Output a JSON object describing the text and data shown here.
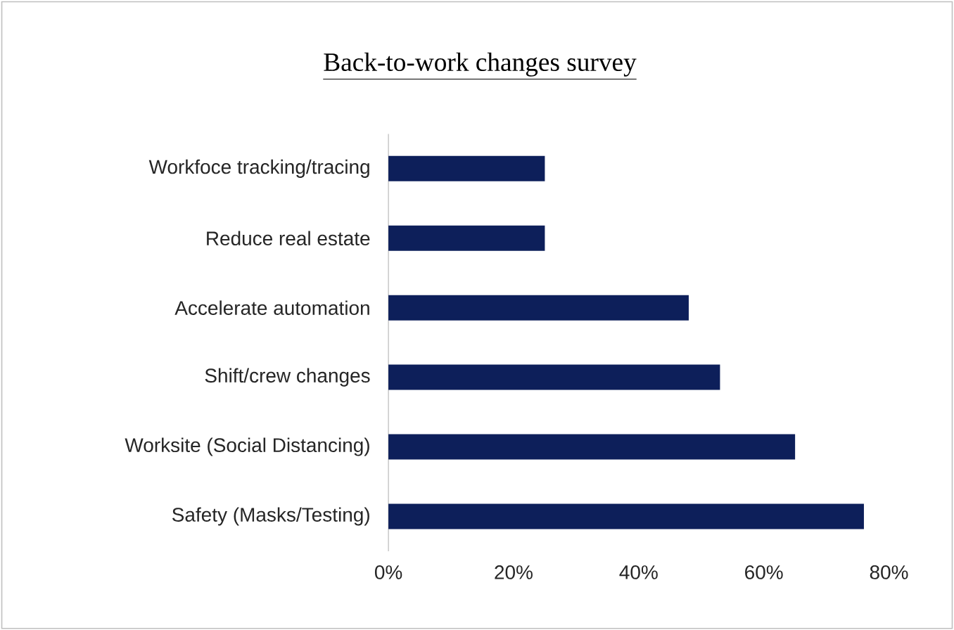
{
  "chart_data": {
    "type": "bar",
    "orientation": "horizontal",
    "title": "Back-to-work changes survey",
    "categories": [
      "Workfoce tracking/tracing",
      "Reduce real estate",
      "Accelerate automation",
      "Shift/crew changes",
      "Worksite (Social Distancing)",
      "Safety (Masks/Testing)"
    ],
    "values": [
      25,
      25,
      48,
      53,
      65,
      76
    ],
    "color": "#0d1f5a",
    "xlim": [
      0,
      80
    ],
    "xticks": [
      {
        "value": 0,
        "label": "0%"
      },
      {
        "value": 20,
        "label": "20%"
      },
      {
        "value": 40,
        "label": "40%"
      },
      {
        "value": 60,
        "label": "60%"
      },
      {
        "value": 80,
        "label": "80%"
      }
    ],
    "grid": false
  }
}
